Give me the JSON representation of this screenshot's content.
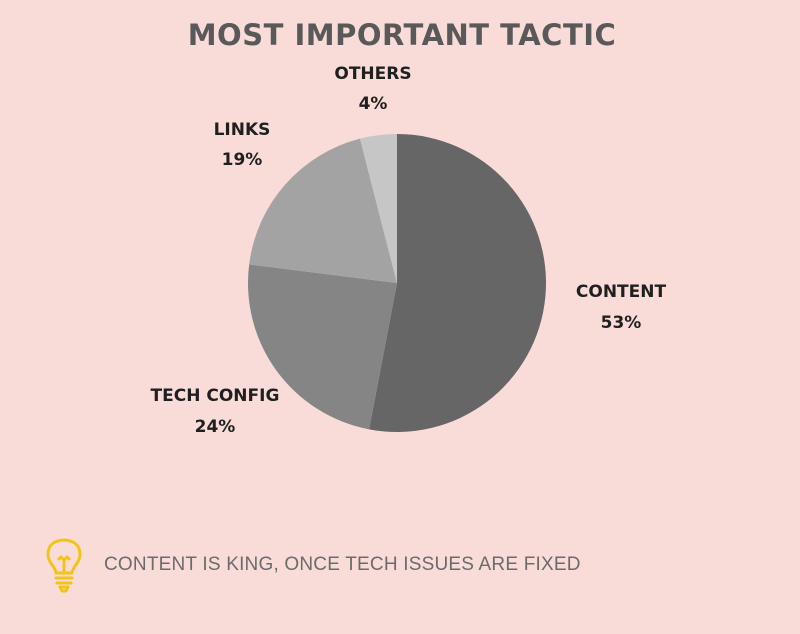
{
  "chart_data": {
    "type": "pie",
    "title": "MOST IMPORTANT TACTIC",
    "slices": [
      {
        "label": "CONTENT",
        "value": 53,
        "display": "53%",
        "color": "#666666"
      },
      {
        "label": "TECH CONFIG",
        "value": 24,
        "display": "24%",
        "color": "#858585"
      },
      {
        "label": "LINKS",
        "value": 19,
        "display": "19%",
        "color": "#a3a3a3"
      },
      {
        "label": "OTHERS",
        "value": 4,
        "display": "4%",
        "color": "#c6c6c6"
      }
    ],
    "start": "12 o'clock",
    "direction": "clockwise"
  },
  "tip": {
    "icon": "lightbulb-icon",
    "icon_color": "#f3c318",
    "text": "CONTENT IS KING, ONCE TECH ISSUES ARE FIXED"
  },
  "background_color": "#f9dcd8"
}
